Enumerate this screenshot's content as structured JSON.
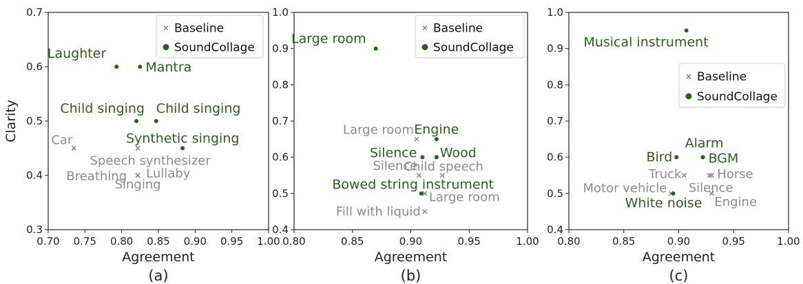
{
  "colors": {
    "baseline": "#8c8c8c",
    "soundcollage": "#2d5e1e",
    "axis": "#222222"
  },
  "legend": {
    "baseline_label": "Baseline",
    "soundcollage_label": "SoundCollage"
  },
  "chart_data": [
    {
      "type": "scatter",
      "panel_label": "(a)",
      "xlabel": "Agreement",
      "ylabel": "Clarity",
      "xlim": [
        0.7,
        1.0
      ],
      "ylim": [
        0.3,
        0.7
      ],
      "x_ticks": [
        "0.70",
        "0.75",
        "0.80",
        "0.85",
        "0.90",
        "0.95",
        "1.00"
      ],
      "y_ticks": [
        "0.3",
        "0.4",
        "0.5",
        "0.6",
        "0.7"
      ],
      "legend_position": "top-right",
      "series": [
        {
          "name": "Baseline",
          "marker": "x",
          "points": [
            {
              "label": "Car",
              "x": 0.735,
              "y": 0.45,
              "anchor": "end",
              "dx": -2,
              "dy": -6
            },
            {
              "label": "Speech synthesizer",
              "x": 0.822,
              "y": 0.45,
              "anchor": "middle",
              "dx": 18,
              "dy": 24
            },
            {
              "label": "Breathing",
              "x": 0.822,
              "y": 0.4,
              "anchor": "end",
              "dx": -16,
              "dy": 7
            },
            {
              "label": "Lullaby",
              "x": 0.822,
              "y": 0.4,
              "anchor": "start",
              "dx": 12,
              "dy": 3
            },
            {
              "label": "Singing",
              "x": 0.822,
              "y": 0.4,
              "anchor": "middle",
              "dx": 0,
              "dy": 19
            }
          ]
        },
        {
          "name": "SoundCollage",
          "marker": "dot",
          "points": [
            {
              "label": "Laughter",
              "x": 0.793,
              "y": 0.6,
              "anchor": "end",
              "dx": -15,
              "dy": -13
            },
            {
              "label": "Mantra",
              "x": 0.825,
              "y": 0.6,
              "anchor": "start",
              "dx": 8,
              "dy": 7
            },
            {
              "label": "Child singing",
              "x": 0.82,
              "y": 0.5,
              "anchor": "end",
              "dx": 12,
              "dy": -12
            },
            {
              "label": "Child singing",
              "x": 0.847,
              "y": 0.5,
              "anchor": "start",
              "dx": 0,
              "dy": -12
            },
            {
              "label": "Synthetic singing",
              "x": 0.883,
              "y": 0.45,
              "anchor": "middle",
              "dx": 0,
              "dy": -8
            }
          ]
        }
      ]
    },
    {
      "type": "scatter",
      "panel_label": "(b)",
      "xlabel": "Agreement",
      "ylabel": "",
      "xlim": [
        0.8,
        1.0
      ],
      "ylim": [
        0.4,
        1.0
      ],
      "x_ticks": [
        "0.80",
        "0.85",
        "0.90",
        "0.95",
        "1.00"
      ],
      "y_ticks": [
        "0.4",
        "0.5",
        "0.6",
        "0.7",
        "0.8",
        "0.9",
        "1.0"
      ],
      "legend_position": "top-right",
      "series": [
        {
          "name": "Baseline",
          "marker": "x",
          "points": [
            {
              "label": "Large room",
              "x": 0.905,
              "y": 0.65,
              "anchor": "end",
              "dx": -4,
              "dy": -8
            },
            {
              "label": "Silence",
              "x": 0.907,
              "y": 0.55,
              "anchor": "end",
              "dx": -2,
              "dy": -8
            },
            {
              "label": "Child speech",
              "x": 0.927,
              "y": 0.55,
              "anchor": "middle",
              "dx": 2,
              "dy": -7
            },
            {
              "label": "Large room",
              "x": 0.912,
              "y": 0.5,
              "anchor": "start",
              "dx": 6,
              "dy": 11
            },
            {
              "label": "Fill with liquid",
              "x": 0.912,
              "y": 0.45,
              "anchor": "end",
              "dx": -6,
              "dy": 6
            }
          ]
        },
        {
          "name": "SoundCollage",
          "marker": "dot",
          "points": [
            {
              "label": "Large room",
              "x": 0.87,
              "y": 0.9,
              "anchor": "end",
              "dx": -14,
              "dy": -8
            },
            {
              "label": "Engine",
              "x": 0.922,
              "y": 0.65,
              "anchor": "middle",
              "dx": 0,
              "dy": -8
            },
            {
              "label": "Silence",
              "x": 0.91,
              "y": 0.6,
              "anchor": "end",
              "dx": -8,
              "dy": 0
            },
            {
              "label": "Wood",
              "x": 0.922,
              "y": 0.6,
              "anchor": "start",
              "dx": 5,
              "dy": 0
            },
            {
              "label": "Bowed string instrument",
              "x": 0.909,
              "y": 0.5,
              "anchor": "middle",
              "dx": -12,
              "dy": -7
            }
          ]
        }
      ]
    },
    {
      "type": "scatter",
      "panel_label": "(c)",
      "xlabel": "Agreement",
      "ylabel": "",
      "xlim": [
        0.8,
        1.0
      ],
      "ylim": [
        0.4,
        1.0
      ],
      "x_ticks": [
        "0.80",
        "0.85",
        "0.90",
        "0.95",
        "1.00"
      ],
      "y_ticks": [
        "0.4",
        "0.5",
        "0.6",
        "0.7",
        "0.8",
        "0.9",
        "1.0"
      ],
      "legend_position": "center-right",
      "series": [
        {
          "name": "Baseline",
          "marker": "x",
          "points": [
            {
              "label": "Truck",
              "x": 0.905,
              "y": 0.55,
              "anchor": "end",
              "dx": -4,
              "dy": 4
            },
            {
              "label": "Horse",
              "x": 0.93,
              "y": 0.55,
              "anchor": "start",
              "dx": 8,
              "dy": 4
            },
            {
              "label": "Motor vehicle",
              "x": 0.893,
              "y": 0.5,
              "anchor": "end",
              "dx": -6,
              "dy": -2
            },
            {
              "label": "Silence",
              "x": 0.928,
              "y": 0.55,
              "anchor": "middle",
              "dx": 2,
              "dy": 24
            },
            {
              "label": "Engine",
              "x": 0.93,
              "y": 0.5,
              "anchor": "start",
              "dx": 4,
              "dy": 18
            }
          ]
        },
        {
          "name": "SoundCollage",
          "marker": "dot",
          "points": [
            {
              "label": "Musical instrument",
              "x": 0.907,
              "y": 0.95,
              "anchor": "end",
              "dx": 32,
              "dy": 23
            },
            {
              "label": "Bird",
              "x": 0.898,
              "y": 0.6,
              "anchor": "end",
              "dx": -6,
              "dy": 6
            },
            {
              "label": "Alarm",
              "x": 0.922,
              "y": 0.6,
              "anchor": "middle",
              "dx": 2,
              "dy": -14
            },
            {
              "label": "BGM",
              "x": 0.922,
              "y": 0.6,
              "anchor": "start",
              "dx": 8,
              "dy": 8
            },
            {
              "label": "White noise",
              "x": 0.895,
              "y": 0.5,
              "anchor": "middle",
              "dx": -14,
              "dy": 20
            }
          ]
        }
      ]
    }
  ]
}
